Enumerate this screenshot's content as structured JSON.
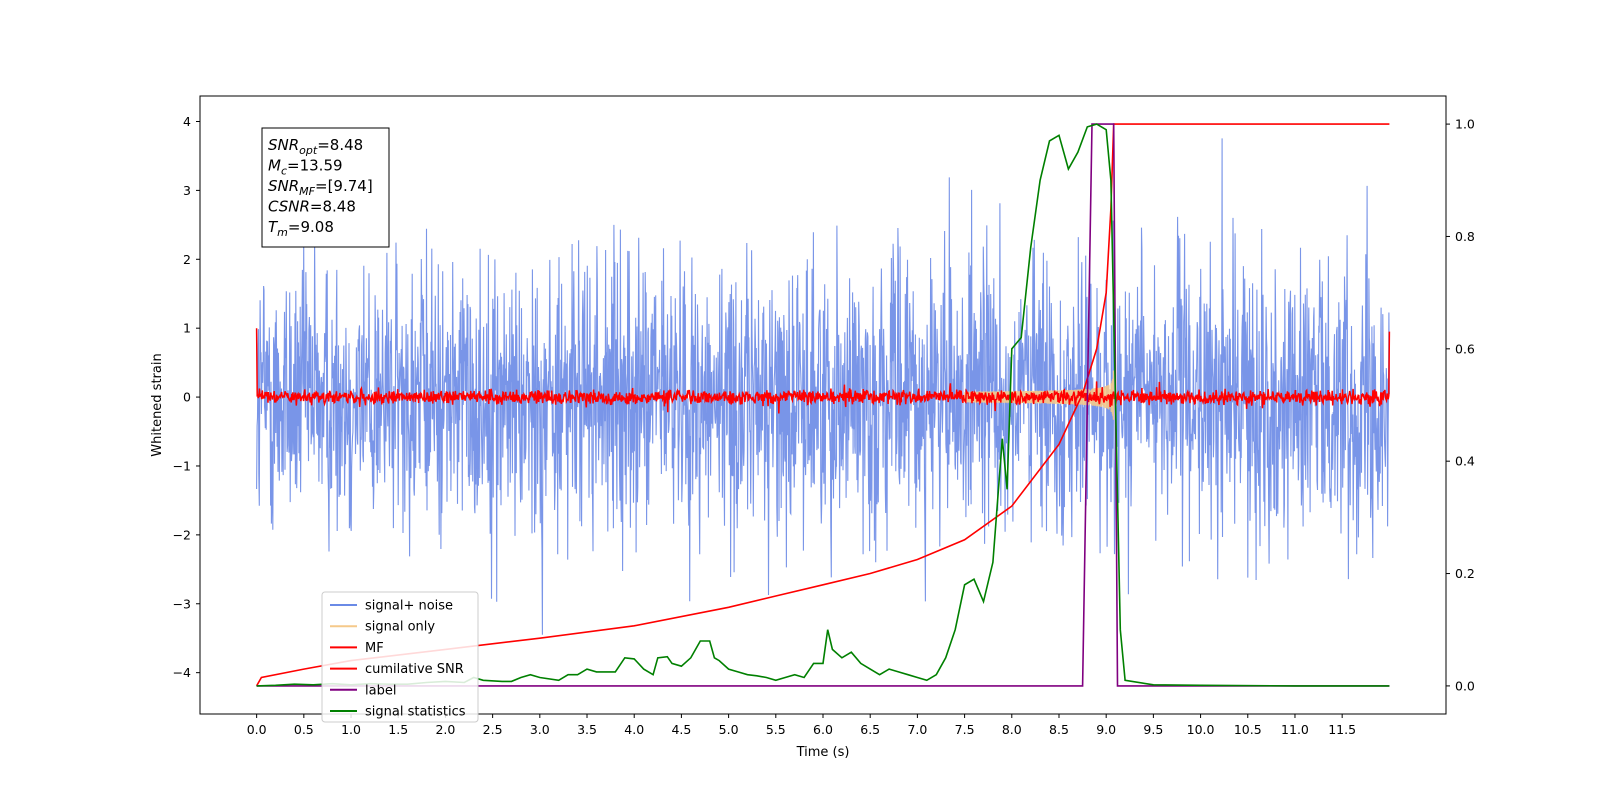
{
  "chart_data": {
    "type": "line",
    "title": "",
    "xlabel": "Time (s)",
    "ylabel": "Whitened strain",
    "y2label": "",
    "xlim": [
      -0.6,
      12.6
    ],
    "ylim": [
      -4.6,
      4.37
    ],
    "y2lim": [
      -0.05,
      1.05
    ],
    "x_ticks": [
      "0.0",
      "0.5",
      "1.0",
      "1.5",
      "2.0",
      "2.5",
      "3.0",
      "3.5",
      "4.0",
      "4.5",
      "5.0",
      "5.5",
      "6.0",
      "6.5",
      "7.0",
      "7.5",
      "8.0",
      "8.5",
      "9.0",
      "9.5",
      "10.0",
      "10.5",
      "11.0",
      "11.5"
    ],
    "y_ticks": [
      "-4",
      "-3",
      "-2",
      "-1",
      "0",
      "1",
      "2",
      "3",
      "4"
    ],
    "y2_ticks": [
      "0.0",
      "0.2",
      "0.4",
      "0.6",
      "0.8",
      "1.0"
    ],
    "grid": false,
    "legend_position": "lower-left",
    "annotation": {
      "lines": [
        {
          "symbol": "SNR",
          "sub": "opt",
          "value": "=8.48"
        },
        {
          "symbol": "M",
          "sub": "c",
          "value": "=13.59"
        },
        {
          "symbol": "SNR",
          "sub": "MF",
          "value": "=[9.74]"
        },
        {
          "symbol": "CSNR",
          "sub": "",
          "value": "=8.48"
        },
        {
          "symbol": "T",
          "sub": "m",
          "value": "=9.08"
        }
      ]
    },
    "series": [
      {
        "name": "signal+ noise",
        "axis": "left",
        "color": "#6a8ae6",
        "description_shape": "noise band approx ±1.5 with spikes up to ±4",
        "x_range": [
          0.0,
          12.0
        ]
      },
      {
        "name": "signal only",
        "axis": "left",
        "color": "#f5c98a",
        "chirp_start": 7.5,
        "chirp_end": 9.08,
        "chirp_peak_amplitude": 0.5
      },
      {
        "name": "MF",
        "axis": "left",
        "color": "#ff0000",
        "noise_level": 0.08
      },
      {
        "name": "cumilative SNR",
        "axis": "right",
        "color": "#ff0000",
        "points": [
          [
            0.0,
            0.0
          ],
          [
            0.05,
            0.015
          ],
          [
            0.5,
            0.03
          ],
          [
            1.0,
            0.045
          ],
          [
            2.0,
            0.065
          ],
          [
            3.0,
            0.085
          ],
          [
            4.0,
            0.107
          ],
          [
            5.0,
            0.14
          ],
          [
            5.5,
            0.16
          ],
          [
            6.0,
            0.18
          ],
          [
            6.5,
            0.2
          ],
          [
            7.0,
            0.225
          ],
          [
            7.5,
            0.26
          ],
          [
            8.0,
            0.32
          ],
          [
            8.5,
            0.43
          ],
          [
            8.75,
            0.52
          ],
          [
            8.9,
            0.6
          ],
          [
            9.0,
            0.7
          ],
          [
            9.05,
            0.85
          ],
          [
            9.08,
            1.0
          ],
          [
            12.0,
            1.0
          ]
        ]
      },
      {
        "name": "label",
        "axis": "right",
        "color": "#800080",
        "points": [
          [
            0.0,
            0.0
          ],
          [
            8.75,
            0.0
          ],
          [
            8.85,
            1.0
          ],
          [
            9.08,
            1.0
          ],
          [
            9.12,
            0.0
          ],
          [
            12.0,
            0.0
          ]
        ]
      },
      {
        "name": "signal statistics",
        "axis": "right",
        "color": "#008000",
        "points": [
          [
            0.0,
            0.0
          ],
          [
            0.2,
            0.001
          ],
          [
            0.4,
            0.003
          ],
          [
            0.6,
            0.002
          ],
          [
            0.8,
            0.004
          ],
          [
            1.0,
            0.002
          ],
          [
            1.2,
            0.004
          ],
          [
            1.4,
            0.003
          ],
          [
            1.6,
            0.003
          ],
          [
            1.8,
            0.006
          ],
          [
            2.0,
            0.008
          ],
          [
            2.2,
            0.006
          ],
          [
            2.3,
            0.015
          ],
          [
            2.4,
            0.01
          ],
          [
            2.6,
            0.008
          ],
          [
            2.7,
            0.008
          ],
          [
            2.8,
            0.015
          ],
          [
            2.9,
            0.02
          ],
          [
            3.0,
            0.015
          ],
          [
            3.2,
            0.01
          ],
          [
            3.3,
            0.02
          ],
          [
            3.4,
            0.02
          ],
          [
            3.5,
            0.03
          ],
          [
            3.6,
            0.025
          ],
          [
            3.8,
            0.025
          ],
          [
            3.9,
            0.05
          ],
          [
            4.0,
            0.048
          ],
          [
            4.1,
            0.03
          ],
          [
            4.2,
            0.02
          ],
          [
            4.25,
            0.05
          ],
          [
            4.35,
            0.052
          ],
          [
            4.4,
            0.04
          ],
          [
            4.5,
            0.035
          ],
          [
            4.6,
            0.05
          ],
          [
            4.7,
            0.08
          ],
          [
            4.8,
            0.08
          ],
          [
            4.85,
            0.05
          ],
          [
            4.9,
            0.045
          ],
          [
            5.0,
            0.03
          ],
          [
            5.1,
            0.025
          ],
          [
            5.2,
            0.02
          ],
          [
            5.3,
            0.018
          ],
          [
            5.4,
            0.015
          ],
          [
            5.5,
            0.01
          ],
          [
            5.6,
            0.015
          ],
          [
            5.7,
            0.02
          ],
          [
            5.8,
            0.015
          ],
          [
            5.9,
            0.04
          ],
          [
            6.0,
            0.04
          ],
          [
            6.05,
            0.1
          ],
          [
            6.1,
            0.065
          ],
          [
            6.2,
            0.05
          ],
          [
            6.3,
            0.06
          ],
          [
            6.4,
            0.04
          ],
          [
            6.5,
            0.03
          ],
          [
            6.6,
            0.02
          ],
          [
            6.7,
            0.03
          ],
          [
            6.8,
            0.025
          ],
          [
            6.9,
            0.02
          ],
          [
            7.0,
            0.015
          ],
          [
            7.1,
            0.01
          ],
          [
            7.2,
            0.02
          ],
          [
            7.3,
            0.05
          ],
          [
            7.4,
            0.1
          ],
          [
            7.5,
            0.18
          ],
          [
            7.6,
            0.19
          ],
          [
            7.7,
            0.15
          ],
          [
            7.8,
            0.22
          ],
          [
            7.9,
            0.44
          ],
          [
            7.95,
            0.35
          ],
          [
            8.0,
            0.6
          ],
          [
            8.1,
            0.62
          ],
          [
            8.2,
            0.78
          ],
          [
            8.3,
            0.9
          ],
          [
            8.4,
            0.97
          ],
          [
            8.5,
            0.98
          ],
          [
            8.6,
            0.92
          ],
          [
            8.7,
            0.95
          ],
          [
            8.8,
            0.995
          ],
          [
            8.9,
            1.0
          ],
          [
            9.0,
            0.99
          ],
          [
            9.05,
            0.9
          ],
          [
            9.1,
            0.5
          ],
          [
            9.15,
            0.1
          ],
          [
            9.2,
            0.01
          ],
          [
            9.5,
            0.002
          ],
          [
            10.0,
            0.001
          ],
          [
            11.0,
            0.0
          ],
          [
            12.0,
            0.0
          ]
        ]
      }
    ]
  }
}
